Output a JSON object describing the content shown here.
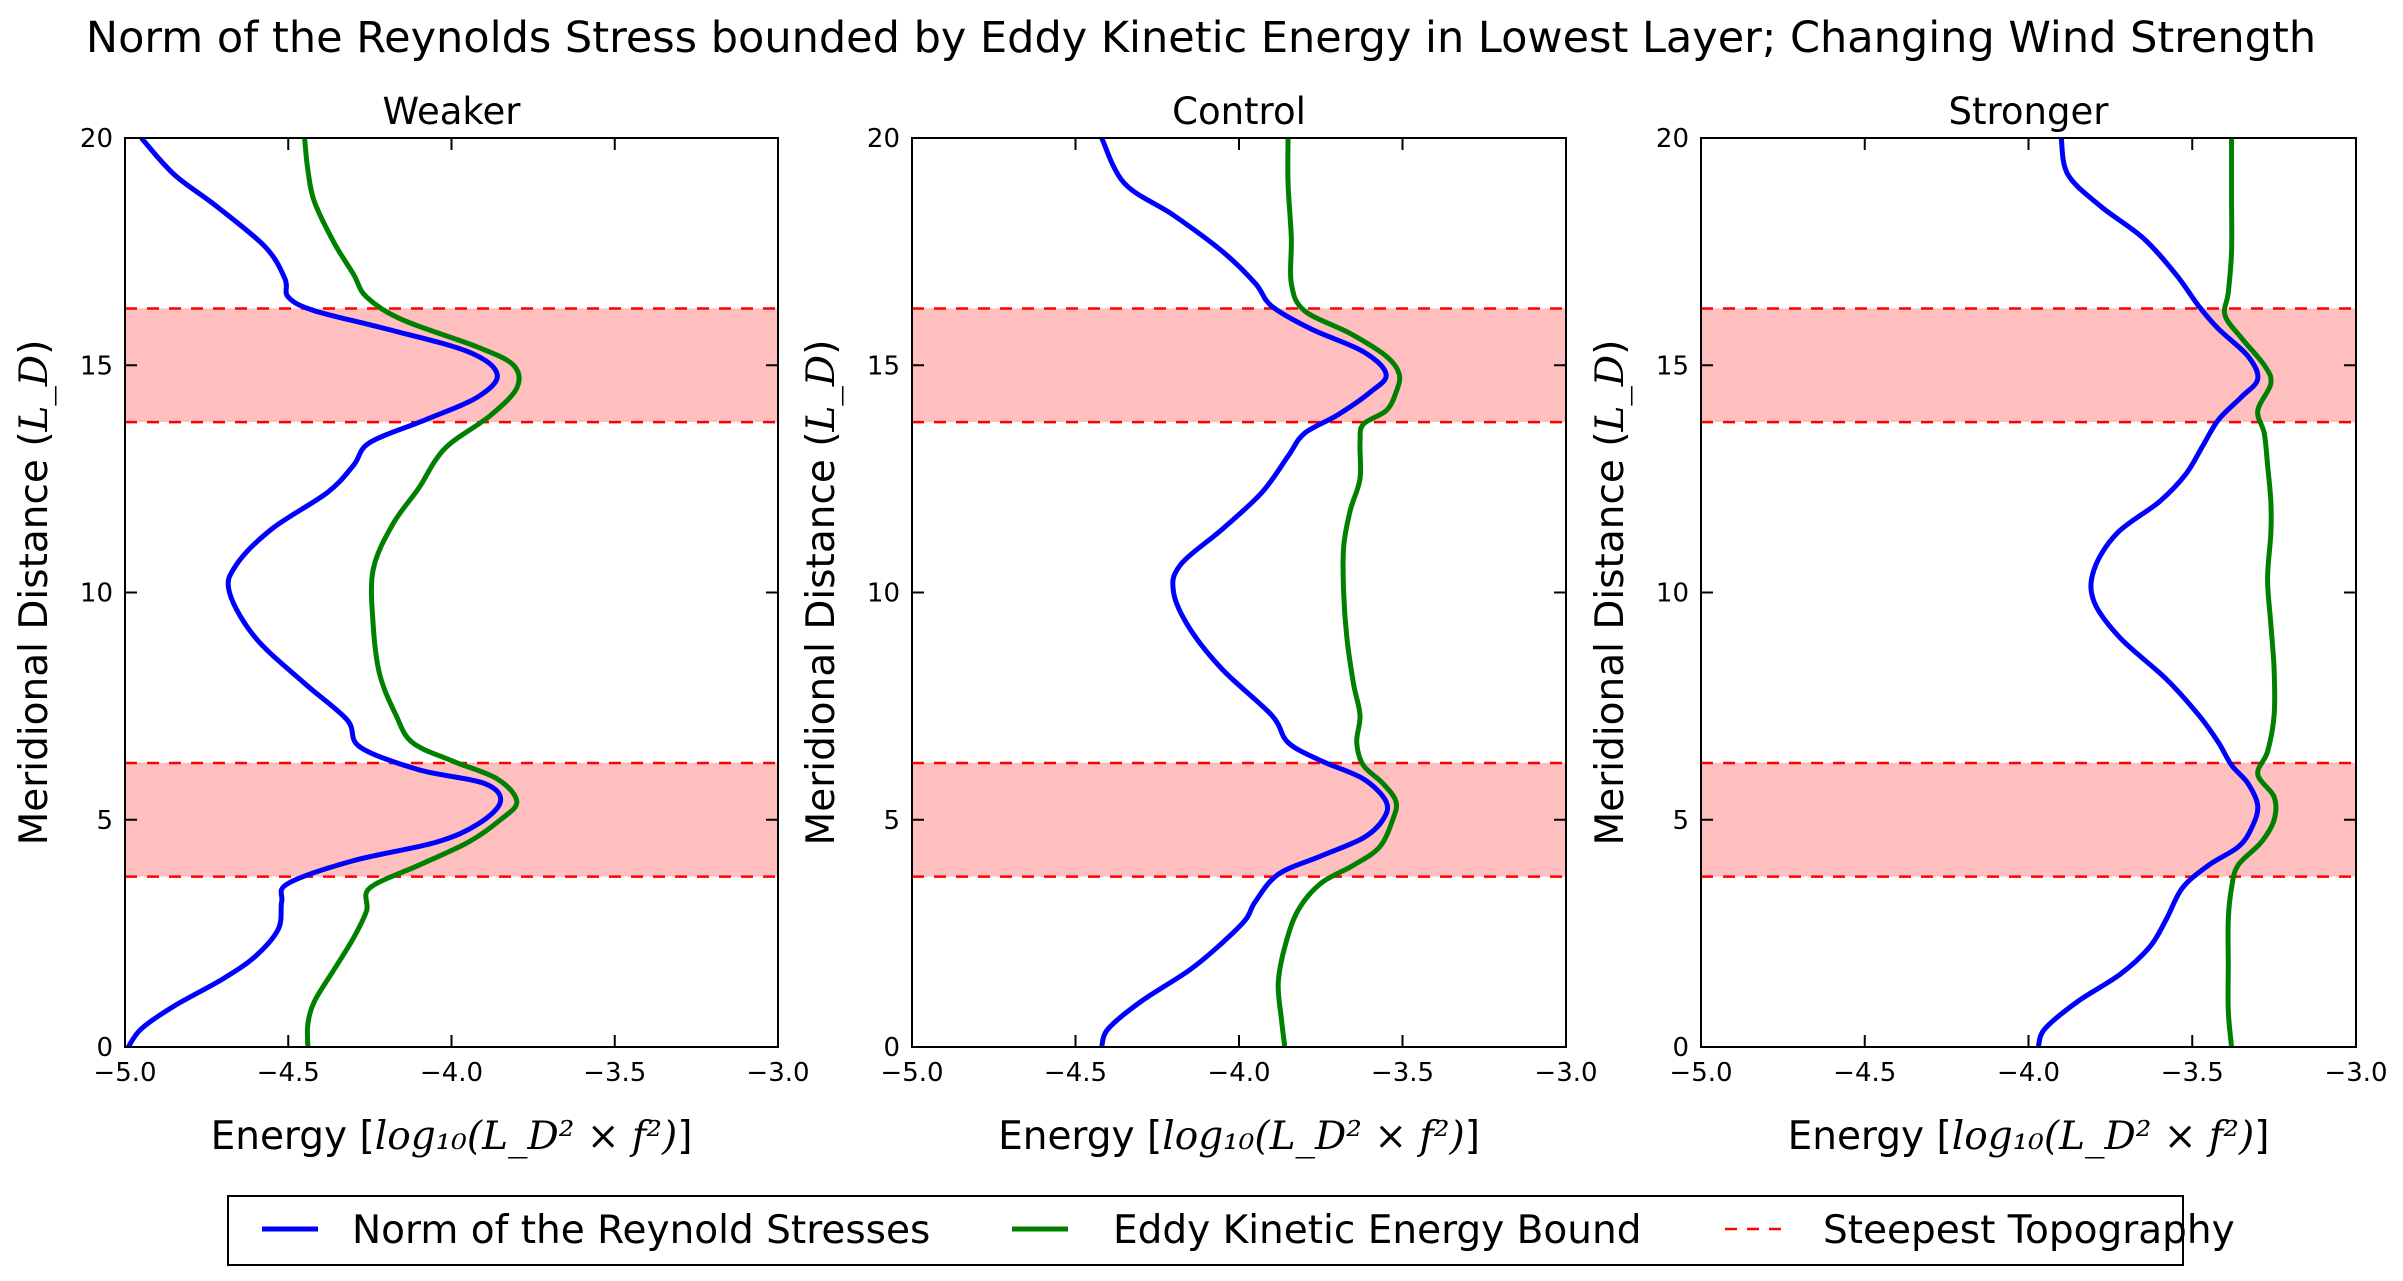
{
  "figure": {
    "title": "Norm of the Reynolds Stress bounded by Eddy Kinetic Energy in Lowest Layer; Changing Wind Strength"
  },
  "axis_text": {
    "xlabel_prefix": "Energy [",
    "xlabel_math": "log₁₀(L_D² × f²)",
    "xlabel_suffix": "]",
    "ylabel_prefix": "Meridional Distance (",
    "ylabel_math": "L_D",
    "ylabel_suffix": ")"
  },
  "legend": {
    "placement": "bottom-center",
    "items": [
      {
        "label": "Norm of the Reynold Stresses",
        "color": "#0000ff",
        "style": "solid"
      },
      {
        "label": "Eddy Kinetic Energy Bound",
        "color": "#008000",
        "style": "solid"
      },
      {
        "label": "Steepest Topography",
        "color": "#ff0000",
        "style": "dashed"
      }
    ]
  },
  "colors": {
    "reynolds": "#0000ff",
    "eke": "#008000",
    "topography_line": "#ff0000",
    "topography_fill": "#ffbfbf"
  },
  "chart_data": [
    {
      "type": "line",
      "title": "Weaker",
      "xlabel": "Energy [log10(L_D^2 x f^2)]",
      "ylabel": "Meridional Distance (L_D)",
      "xlim": [
        -5.0,
        -3.0
      ],
      "ylim": [
        0,
        20
      ],
      "xticks": [
        "-5.0",
        "-4.5",
        "-4.0",
        "-3.5",
        "-3.0"
      ],
      "yticks": [
        "0",
        "5",
        "10",
        "15",
        "20"
      ],
      "grid": false,
      "bands": [
        [
          3.75,
          6.25
        ],
        [
          13.75,
          16.25
        ]
      ],
      "series": [
        {
          "name": "Norm of the Reynold Stresses",
          "color": "#0000ff",
          "points": [
            [
              -4.99,
              0
            ],
            [
              -4.95,
              0.4
            ],
            [
              -4.85,
              0.9
            ],
            [
              -4.7,
              1.5
            ],
            [
              -4.6,
              2.0
            ],
            [
              -4.53,
              2.6
            ],
            [
              -4.52,
              3.2
            ],
            [
              -4.5,
              3.6
            ],
            [
              -4.3,
              4.1
            ],
            [
              -4.05,
              4.5
            ],
            [
              -3.92,
              4.9
            ],
            [
              -3.85,
              5.4
            ],
            [
              -3.9,
              5.8
            ],
            [
              -4.1,
              6.1
            ],
            [
              -4.28,
              6.6
            ],
            [
              -4.32,
              7.2
            ],
            [
              -4.45,
              8.0
            ],
            [
              -4.6,
              9.0
            ],
            [
              -4.68,
              10.0
            ],
            [
              -4.66,
              10.6
            ],
            [
              -4.55,
              11.4
            ],
            [
              -4.38,
              12.2
            ],
            [
              -4.3,
              12.8
            ],
            [
              -4.25,
              13.3
            ],
            [
              -4.08,
              13.8
            ],
            [
              -3.92,
              14.3
            ],
            [
              -3.86,
              14.8
            ],
            [
              -3.95,
              15.3
            ],
            [
              -4.2,
              15.8
            ],
            [
              -4.42,
              16.2
            ],
            [
              -4.5,
              16.5
            ],
            [
              -4.51,
              16.9
            ],
            [
              -4.57,
              17.6
            ],
            [
              -4.72,
              18.5
            ],
            [
              -4.85,
              19.2
            ],
            [
              -4.95,
              20.0
            ]
          ]
        },
        {
          "name": "Eddy Kinetic Energy Bound",
          "color": "#008000",
          "points": [
            [
              -4.44,
              0
            ],
            [
              -4.44,
              0.5
            ],
            [
              -4.42,
              1.0
            ],
            [
              -4.36,
              1.7
            ],
            [
              -4.3,
              2.4
            ],
            [
              -4.26,
              3.0
            ],
            [
              -4.25,
              3.5
            ],
            [
              -4.1,
              4.0
            ],
            [
              -3.95,
              4.5
            ],
            [
              -3.85,
              5.0
            ],
            [
              -3.8,
              5.4
            ],
            [
              -3.86,
              5.9
            ],
            [
              -4.0,
              6.3
            ],
            [
              -4.12,
              6.7
            ],
            [
              -4.17,
              7.3
            ],
            [
              -4.22,
              8.2
            ],
            [
              -4.24,
              9.3
            ],
            [
              -4.24,
              10.5
            ],
            [
              -4.18,
              11.5
            ],
            [
              -4.1,
              12.3
            ],
            [
              -4.05,
              12.9
            ],
            [
              -4.0,
              13.3
            ],
            [
              -3.88,
              13.9
            ],
            [
              -3.8,
              14.5
            ],
            [
              -3.81,
              15.0
            ],
            [
              -3.92,
              15.4
            ],
            [
              -4.15,
              16.0
            ],
            [
              -4.26,
              16.5
            ],
            [
              -4.3,
              17.0
            ],
            [
              -4.36,
              17.7
            ],
            [
              -4.42,
              18.6
            ],
            [
              -4.44,
              19.3
            ],
            [
              -4.45,
              20.0
            ]
          ]
        },
        {
          "name": "Steepest Topography",
          "color": "#ff0000",
          "style": "dashed",
          "y": [
            3.75,
            6.25,
            13.75,
            16.25
          ]
        }
      ]
    },
    {
      "type": "line",
      "title": "Control",
      "xlabel": "Energy [log10(L_D^2 x f^2)]",
      "ylabel": "Meridional Distance (L_D)",
      "xlim": [
        -5.0,
        -3.0
      ],
      "ylim": [
        0,
        20
      ],
      "xticks": [
        "-5.0",
        "-4.5",
        "-4.0",
        "-3.5",
        "-3.0"
      ],
      "yticks": [
        "0",
        "5",
        "10",
        "15",
        "20"
      ],
      "grid": false,
      "bands": [
        [
          3.75,
          6.25
        ],
        [
          13.75,
          16.25
        ]
      ],
      "series": [
        {
          "name": "Norm of the Reynold Stresses",
          "color": "#0000ff",
          "points": [
            [
              -4.42,
              0
            ],
            [
              -4.4,
              0.4
            ],
            [
              -4.3,
              1.0
            ],
            [
              -4.15,
              1.7
            ],
            [
              -4.05,
              2.3
            ],
            [
              -3.98,
              2.8
            ],
            [
              -3.95,
              3.2
            ],
            [
              -3.88,
              3.8
            ],
            [
              -3.75,
              4.2
            ],
            [
              -3.62,
              4.6
            ],
            [
              -3.56,
              5.0
            ],
            [
              -3.55,
              5.4
            ],
            [
              -3.62,
              5.9
            ],
            [
              -3.75,
              6.3
            ],
            [
              -3.85,
              6.7
            ],
            [
              -3.9,
              7.3
            ],
            [
              -4.05,
              8.3
            ],
            [
              -4.15,
              9.2
            ],
            [
              -4.2,
              10.0
            ],
            [
              -4.18,
              10.6
            ],
            [
              -4.05,
              11.4
            ],
            [
              -3.93,
              12.2
            ],
            [
              -3.85,
              13.0
            ],
            [
              -3.8,
              13.5
            ],
            [
              -3.7,
              13.9
            ],
            [
              -3.6,
              14.4
            ],
            [
              -3.55,
              14.8
            ],
            [
              -3.62,
              15.3
            ],
            [
              -3.78,
              15.8
            ],
            [
              -3.9,
              16.3
            ],
            [
              -3.95,
              16.8
            ],
            [
              -4.05,
              17.5
            ],
            [
              -4.2,
              18.3
            ],
            [
              -4.35,
              19.0
            ],
            [
              -4.42,
              20.0
            ]
          ]
        },
        {
          "name": "Eddy Kinetic Energy Bound",
          "color": "#008000",
          "points": [
            [
              -3.86,
              0
            ],
            [
              -3.87,
              0.6
            ],
            [
              -3.88,
              1.4
            ],
            [
              -3.86,
              2.2
            ],
            [
              -3.82,
              3.0
            ],
            [
              -3.75,
              3.6
            ],
            [
              -3.65,
              4.0
            ],
            [
              -3.57,
              4.4
            ],
            [
              -3.53,
              5.0
            ],
            [
              -3.52,
              5.4
            ],
            [
              -3.56,
              5.8
            ],
            [
              -3.62,
              6.2
            ],
            [
              -3.64,
              6.7
            ],
            [
              -3.63,
              7.3
            ],
            [
              -3.65,
              8.0
            ],
            [
              -3.67,
              9.0
            ],
            [
              -3.68,
              10.0
            ],
            [
              -3.68,
              11.0
            ],
            [
              -3.66,
              11.8
            ],
            [
              -3.63,
              12.5
            ],
            [
              -3.63,
              13.3
            ],
            [
              -3.62,
              13.7
            ],
            [
              -3.55,
              14.0
            ],
            [
              -3.52,
              14.4
            ],
            [
              -3.51,
              14.8
            ],
            [
              -3.55,
              15.2
            ],
            [
              -3.66,
              15.7
            ],
            [
              -3.8,
              16.2
            ],
            [
              -3.84,
              16.8
            ],
            [
              -3.84,
              17.8
            ],
            [
              -3.85,
              19.0
            ],
            [
              -3.85,
              20.0
            ]
          ]
        },
        {
          "name": "Steepest Topography",
          "color": "#ff0000",
          "style": "dashed",
          "y": [
            3.75,
            6.25,
            13.75,
            16.25
          ]
        }
      ]
    },
    {
      "type": "line",
      "title": "Stronger",
      "xlabel": "Energy [log10(L_D^2 x f^2)]",
      "ylabel": "Meridional Distance (L_D)",
      "xlim": [
        -5.0,
        -3.0
      ],
      "ylim": [
        0,
        20
      ],
      "xticks": [
        "-5.0",
        "-4.5",
        "-4.0",
        "-3.5",
        "-3.0"
      ],
      "yticks": [
        "0",
        "5",
        "10",
        "15",
        "20"
      ],
      "grid": false,
      "bands": [
        [
          3.75,
          6.25
        ],
        [
          13.75,
          16.25
        ]
      ],
      "series": [
        {
          "name": "Norm of the Reynold Stresses",
          "color": "#0000ff",
          "points": [
            [
              -3.97,
              0
            ],
            [
              -3.95,
              0.4
            ],
            [
              -3.85,
              1.0
            ],
            [
              -3.72,
              1.6
            ],
            [
              -3.63,
              2.2
            ],
            [
              -3.58,
              2.8
            ],
            [
              -3.53,
              3.5
            ],
            [
              -3.45,
              4.0
            ],
            [
              -3.36,
              4.4
            ],
            [
              -3.32,
              4.8
            ],
            [
              -3.3,
              5.3
            ],
            [
              -3.33,
              5.8
            ],
            [
              -3.38,
              6.2
            ],
            [
              -3.42,
              6.7
            ],
            [
              -3.48,
              7.3
            ],
            [
              -3.58,
              8.1
            ],
            [
              -3.72,
              9.0
            ],
            [
              -3.8,
              9.8
            ],
            [
              -3.8,
              10.5
            ],
            [
              -3.73,
              11.3
            ],
            [
              -3.6,
              12.0
            ],
            [
              -3.52,
              12.6
            ],
            [
              -3.47,
              13.2
            ],
            [
              -3.42,
              13.8
            ],
            [
              -3.35,
              14.3
            ],
            [
              -3.3,
              14.7
            ],
            [
              -3.33,
              15.2
            ],
            [
              -3.42,
              15.8
            ],
            [
              -3.48,
              16.3
            ],
            [
              -3.55,
              17.0
            ],
            [
              -3.65,
              17.8
            ],
            [
              -3.78,
              18.5
            ],
            [
              -3.88,
              19.2
            ],
            [
              -3.9,
              20.0
            ]
          ]
        },
        {
          "name": "Eddy Kinetic Energy Bound",
          "color": "#008000",
          "points": [
            [
              -3.38,
              0
            ],
            [
              -3.39,
              0.8
            ],
            [
              -3.39,
              1.8
            ],
            [
              -3.39,
              2.8
            ],
            [
              -3.38,
              3.5
            ],
            [
              -3.36,
              4.0
            ],
            [
              -3.29,
              4.5
            ],
            [
              -3.25,
              5.0
            ],
            [
              -3.25,
              5.5
            ],
            [
              -3.3,
              6.0
            ],
            [
              -3.27,
              6.5
            ],
            [
              -3.25,
              7.3
            ],
            [
              -3.25,
              8.3
            ],
            [
              -3.26,
              9.3
            ],
            [
              -3.27,
              10.3
            ],
            [
              -3.26,
              11.3
            ],
            [
              -3.26,
              12.0
            ],
            [
              -3.27,
              12.8
            ],
            [
              -3.28,
              13.5
            ],
            [
              -3.3,
              14.0
            ],
            [
              -3.26,
              14.6
            ],
            [
              -3.28,
              15.0
            ],
            [
              -3.35,
              15.6
            ],
            [
              -3.4,
              16.1
            ],
            [
              -3.39,
              16.6
            ],
            [
              -3.38,
              17.5
            ],
            [
              -3.38,
              18.7
            ],
            [
              -3.38,
              20.0
            ]
          ]
        },
        {
          "name": "Steepest Topography",
          "color": "#ff0000",
          "style": "dashed",
          "y": [
            3.75,
            6.25,
            13.75,
            16.25
          ]
        }
      ]
    }
  ]
}
